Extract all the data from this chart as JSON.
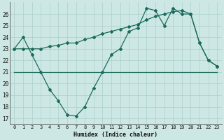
{
  "xlabel": "Humidex (Indice chaleur)",
  "ylabel": "",
  "xlim": [
    -0.5,
    23.5
  ],
  "ylim": [
    16.5,
    27
  ],
  "yticks": [
    17,
    18,
    19,
    20,
    21,
    22,
    23,
    24,
    25,
    26
  ],
  "xticks": [
    0,
    1,
    2,
    3,
    4,
    5,
    6,
    7,
    8,
    9,
    10,
    11,
    12,
    13,
    14,
    15,
    16,
    17,
    18,
    19,
    20,
    21,
    22,
    23
  ],
  "bg_color": "#cde8e4",
  "grid_color": "#aacfcc",
  "line_color": "#1a6b5a",
  "line1": [
    23,
    24,
    22.5,
    21,
    19.5,
    18.5,
    17.3,
    17.2,
    18.0,
    19.6,
    21.0,
    22.5,
    23.0,
    24.5,
    24.8,
    26.5,
    26.3,
    25.0,
    26.5,
    26.0,
    26.0,
    23.5,
    22.0,
    21.5
  ],
  "line2": [
    21,
    21,
    21,
    21,
    21,
    21,
    21,
    21,
    21,
    21,
    21,
    21,
    21,
    21,
    21,
    21,
    21,
    21,
    21,
    21,
    21,
    21,
    21,
    21
  ],
  "line3": [
    23,
    23,
    23,
    23,
    23.2,
    23.3,
    23.5,
    23.5,
    23.8,
    24.0,
    24.3,
    24.5,
    24.7,
    24.9,
    25.1,
    25.5,
    25.8,
    26.0,
    26.2,
    26.3,
    26.0,
    23.5,
    22.0,
    21.5
  ]
}
